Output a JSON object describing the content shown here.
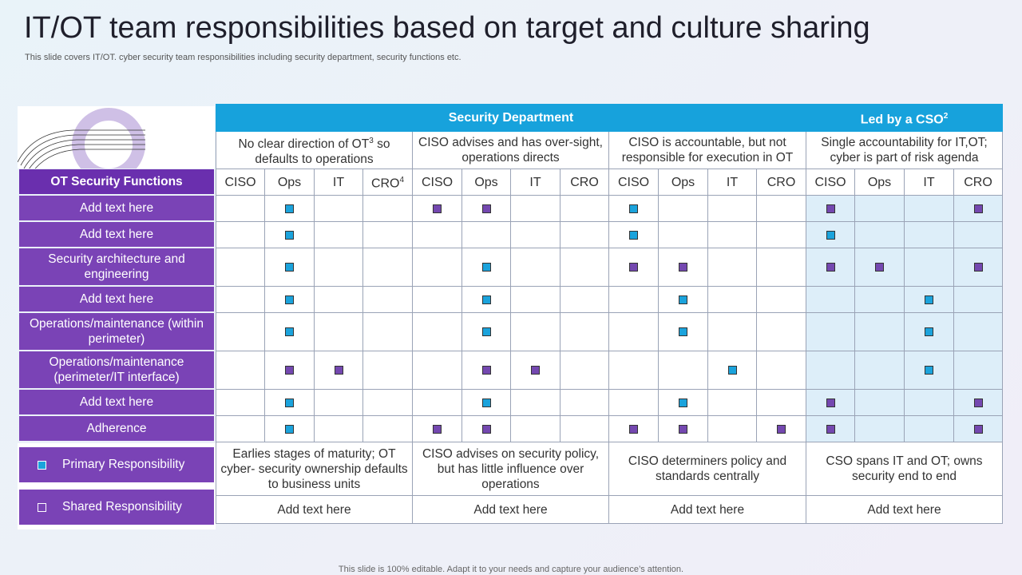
{
  "title": "IT/OT team responsibilities based on target and culture sharing",
  "subtitle": "This slide covers IT/OT. cyber security team responsibilities including security department, security functions etc.",
  "footer": "This slide is 100% editable. Adapt it to your needs and capture your audience’s attention.",
  "groups": [
    {
      "label": "Security Department"
    },
    {
      "label": "Led by a CSO",
      "sup": "2"
    }
  ],
  "column_notes": [
    {
      "text": "No clear direction of OT",
      "sup": "3",
      "text2": " so defaults to operations"
    },
    {
      "text": "CISO advises and has over-sight, operations directs"
    },
    {
      "text": "CISO is accountable, but not responsible for execution in OT"
    },
    {
      "text": "Single accountability for IT,OT; cyber is part of risk agenda"
    }
  ],
  "row_header": "OT Security Functions",
  "roles": [
    "CISO",
    "Ops",
    "IT",
    "CRO"
  ],
  "cro_sup": "4",
  "rows": [
    {
      "label": "Add text here",
      "marks": [
        "",
        "p",
        "",
        "",
        "s",
        "s",
        "",
        "",
        "p",
        "",
        "",
        "",
        "s",
        "",
        "",
        "s"
      ]
    },
    {
      "label": "Add text here",
      "marks": [
        "",
        "p",
        "",
        "",
        "",
        "",
        "",
        "",
        "p",
        "",
        "",
        "",
        "p",
        "",
        "",
        ""
      ]
    },
    {
      "label": "Security architecture and engineering",
      "marks": [
        "",
        "p",
        "",
        "",
        "",
        "p",
        "",
        "",
        "s",
        "s",
        "",
        "",
        "s",
        "s",
        "",
        "s"
      ]
    },
    {
      "label": "Add text here",
      "marks": [
        "",
        "p",
        "",
        "",
        "",
        "p",
        "",
        "",
        "",
        "p",
        "",
        "",
        "",
        "",
        "p",
        ""
      ]
    },
    {
      "label": "Operations/maintenance (within perimeter)",
      "marks": [
        "",
        "p",
        "",
        "",
        "",
        "p",
        "",
        "",
        "",
        "p",
        "",
        "",
        "",
        "",
        "p",
        ""
      ]
    },
    {
      "label": "Operations/maintenance (perimeter/IT  interface)",
      "marks": [
        "",
        "s",
        "s",
        "",
        "",
        "s",
        "s",
        "",
        "",
        "",
        "p",
        "",
        "",
        "",
        "p",
        ""
      ]
    },
    {
      "label": "Add text here",
      "marks": [
        "",
        "p",
        "",
        "",
        "",
        "p",
        "",
        "",
        "",
        "p",
        "",
        "",
        "s",
        "",
        "",
        "s"
      ]
    },
    {
      "label": "Adherence",
      "marks": [
        "",
        "p",
        "",
        "",
        "s",
        "s",
        "",
        "",
        "s",
        "s",
        "",
        "s",
        "s",
        "",
        "",
        "s"
      ]
    }
  ],
  "legend": [
    {
      "type": "primary",
      "label": "Primary Responsibility"
    },
    {
      "type": "shared",
      "label": "Shared Responsibility"
    }
  ],
  "summaries": [
    "Earlies stages of maturity;  OT cyber- security ownership defaults to business units",
    "CISO advises on security policy, but has little influence over operations",
    "CISO determiners policy and standards centrally",
    "CSO spans IT and OT; owns security end to end"
  ],
  "add_text": [
    "Add text here",
    "Add text here",
    "Add text here",
    "Add text here"
  ],
  "colors": {
    "primary": "#1ba3dc",
    "shared": "#7448b0",
    "header": "#17a2dc",
    "left": "#7a43b6"
  }
}
